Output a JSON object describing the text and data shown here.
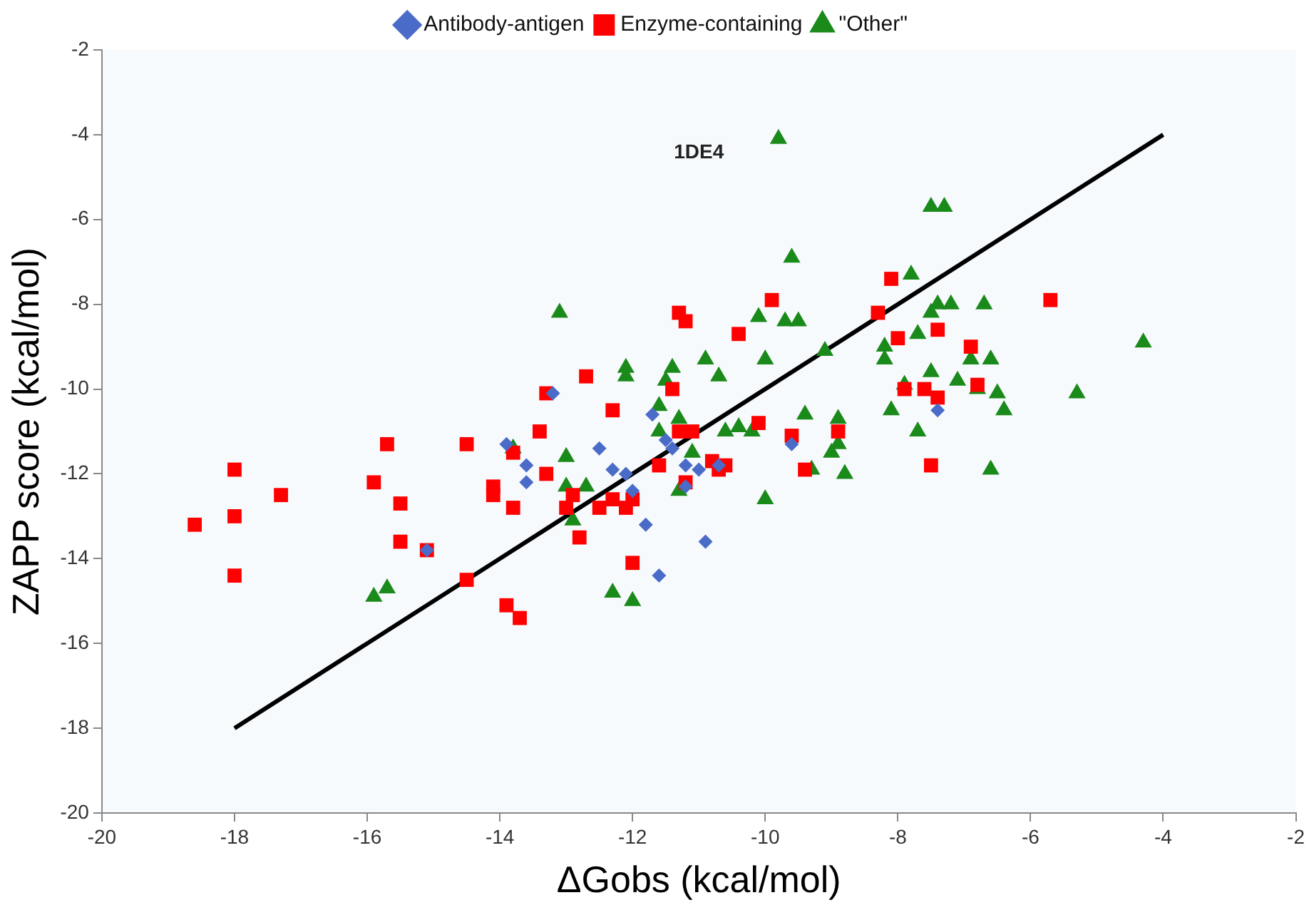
{
  "chart_data": {
    "type": "scatter",
    "xlabel": "ΔGobs (kcal/mol)",
    "ylabel": "ZAPP score (kcal/mol)",
    "xlim": [
      -20,
      -2
    ],
    "xticks": [
      -20,
      -18,
      -16,
      -14,
      -12,
      -10,
      -8,
      -6,
      -4,
      -2
    ],
    "ylim": [
      -20,
      -2
    ],
    "yticks": [
      -20,
      -18,
      -16,
      -14,
      -12,
      -10,
      -8,
      -6,
      -4,
      -2
    ],
    "grid": false,
    "legend": "top",
    "annotations": [
      "1DE4"
    ],
    "series": [
      {
        "name": "Antibody-antigen",
        "color": "#4a6cc8",
        "marker": "diamond",
        "x": [
          -15.1,
          -13.9,
          -13.6,
          -13.6,
          -13.2,
          -12.5,
          -12.3,
          -12.1,
          -11.7,
          -11.5,
          -11.4,
          -11.8,
          -11.6,
          -11.2,
          -11.2,
          -10.9,
          -10.7,
          -9.6,
          -7.4,
          -12.0,
          -11.0
        ],
        "values": [
          -13.8,
          -11.3,
          -11.8,
          -12.2,
          -10.1,
          -11.4,
          -11.9,
          -12.0,
          -10.6,
          -11.2,
          -11.4,
          -13.2,
          -14.4,
          -11.8,
          -12.3,
          -13.6,
          -11.8,
          -11.3,
          -10.5,
          -12.4,
          -11.9
        ]
      },
      {
        "name": "Enzyme-containing",
        "color": "#ff0000",
        "marker": "square",
        "x": [
          -18.6,
          -18,
          -18,
          -18,
          -17.3,
          -15.9,
          -15.7,
          -15.5,
          -15.5,
          -15.1,
          -14.5,
          -14.5,
          -14.1,
          -14.1,
          -13.9,
          -13.8,
          -13.8,
          -13.7,
          -13.4,
          -13.3,
          -13.3,
          -13.0,
          -12.9,
          -12.8,
          -12.7,
          -12.5,
          -12.3,
          -12.3,
          -12.1,
          -12.0,
          -12.0,
          -11.6,
          -11.4,
          -11.3,
          -11.3,
          -11.2,
          -11.2,
          -11.1,
          -10.8,
          -10.7,
          -10.6,
          -10.4,
          -10.1,
          -9.9,
          -9.6,
          -9.4,
          -8.9,
          -8.3,
          -8.1,
          -8.0,
          -7.9,
          -7.6,
          -7.5,
          -7.4,
          -7.4,
          -6.9,
          -6.8,
          -5.7
        ],
        "values": [
          -13.2,
          -11.9,
          -13.0,
          -14.4,
          -12.5,
          -12.2,
          -11.3,
          -12.7,
          -13.6,
          -13.8,
          -11.3,
          -14.5,
          -12.3,
          -12.5,
          -15.1,
          -11.5,
          -12.8,
          -15.4,
          -11.0,
          -12.0,
          -10.1,
          -12.8,
          -12.5,
          -13.5,
          -9.7,
          -12.8,
          -10.5,
          -12.6,
          -12.8,
          -14.1,
          -12.6,
          -11.8,
          -10.0,
          -11.0,
          -8.2,
          -8.4,
          -12.2,
          -11.0,
          -11.7,
          -11.9,
          -11.8,
          -8.7,
          -10.8,
          -7.9,
          -11.1,
          -11.9,
          -11.0,
          -8.2,
          -7.4,
          -8.8,
          -10.0,
          -10.0,
          -11.8,
          -8.6,
          -10.2,
          -9.0,
          -9.9,
          -7.9
        ]
      },
      {
        "name": "\"Other\"",
        "color": "#1a8a1a",
        "marker": "triangle",
        "x": [
          -15.9,
          -15.7,
          -13.1,
          -13.8,
          -12.9,
          -12.7,
          -13.0,
          -13.0,
          -12.1,
          -12.1,
          -12.3,
          -12.0,
          -11.6,
          -11.4,
          -11.5,
          -11.6,
          -11.3,
          -11.1,
          -11.3,
          -10.9,
          -10.7,
          -10.6,
          -10.4,
          -10.2,
          -10.1,
          -10.0,
          -10.0,
          -9.8,
          -9.7,
          -9.5,
          -9.6,
          -9.4,
          -9.3,
          -9.1,
          -9.0,
          -8.9,
          -8.9,
          -8.8,
          -7.5,
          -7.3,
          -7.8,
          -8.2,
          -8.2,
          -7.7,
          -7.5,
          -7.4,
          -7.2,
          -6.7,
          -7.9,
          -7.7,
          -7.5,
          -7.1,
          -6.6,
          -6.5,
          -6.4,
          -6.9,
          -6.8,
          -6.6,
          -8.1,
          -5.3,
          -4.3
        ],
        "values": [
          -14.9,
          -14.7,
          -8.2,
          -11.4,
          -13.1,
          -12.3,
          -11.6,
          -12.3,
          -9.5,
          -9.7,
          -14.8,
          -15.0,
          -10.4,
          -9.5,
          -9.8,
          -11.0,
          -12.4,
          -11.5,
          -10.7,
          -9.3,
          -9.7,
          -11.0,
          -10.9,
          -11.0,
          -8.3,
          -12.6,
          -9.3,
          -4.1,
          -8.4,
          -8.4,
          -6.9,
          -10.6,
          -11.9,
          -9.1,
          -11.5,
          -11.3,
          -10.7,
          -12.0,
          -5.7,
          -5.7,
          -7.3,
          -9.0,
          -9.3,
          -8.7,
          -8.2,
          -8.0,
          -8.0,
          -8.0,
          -9.9,
          -11.0,
          -9.6,
          -9.8,
          -9.3,
          -10.1,
          -10.5,
          -9.3,
          -10.0,
          -11.9,
          -10.5,
          -10.1,
          -8.9
        ]
      },
      {
        "type": "line",
        "color": "#000000",
        "marker": "none",
        "line_style": "solid",
        "x": [
          -18,
          -4
        ],
        "values": [
          -18,
          -4
        ]
      }
    ]
  }
}
